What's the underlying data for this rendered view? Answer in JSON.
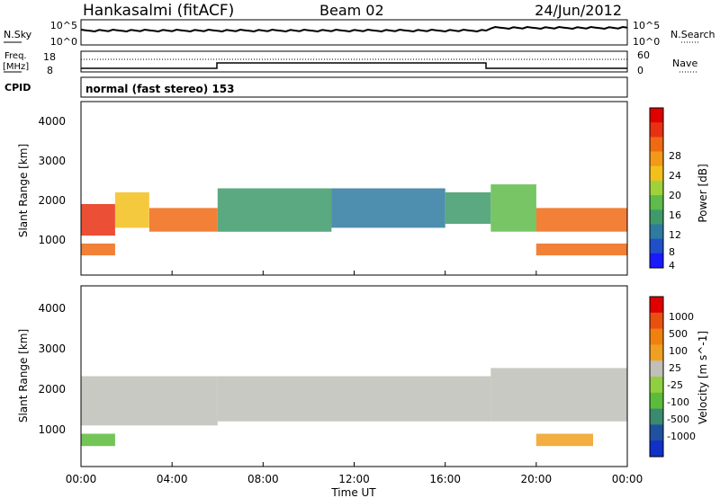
{
  "header": {
    "station": "Hankasalmi (fitACF)",
    "beam": "Beam 02",
    "date": "24/Jun/2012"
  },
  "top_panels": {
    "nsky_label": "N.Sky",
    "nsky_ticks": [
      "10^5",
      "10^0"
    ],
    "nsearch_label": "N.Search",
    "nsearch_ticks": [
      "10^5",
      "10^0"
    ],
    "freq_label_1": "Freq.",
    "freq_label_2": "[MHz]",
    "freq_ticks": [
      "18",
      "8"
    ],
    "nave_label": "Nave",
    "nave_ticks": [
      "60",
      "0"
    ],
    "cpid_label": "CPID",
    "cpid_text": "normal (fast stereo) 153"
  },
  "chart_data": [
    {
      "type": "heatmap",
      "name": "power",
      "ylabel": "Slant Range [km]",
      "yticks": [
        "4000",
        "3000",
        "2000",
        "1000"
      ],
      "ylim": [
        200,
        4600
      ],
      "xlim": [
        0,
        24
      ],
      "colorbar_label": "Power [dB]",
      "colorbar_ticks": [
        "28",
        "24",
        "20",
        "16",
        "12",
        "8",
        "4"
      ],
      "colors": [
        "#1a1aff",
        "#2050c8",
        "#2f7aa0",
        "#3e9a6a",
        "#5fbb4a",
        "#9fd23a",
        "#f2c01c",
        "#f29a18",
        "#f06a14",
        "#e83012",
        "#e00000"
      ],
      "bands": [
        {
          "t0": 0.0,
          "t1": 1.5,
          "r0": 1200,
          "r1": 2000,
          "level": 9
        },
        {
          "t0": 0.0,
          "t1": 1.5,
          "r0": 700,
          "r1": 1000,
          "level": 8
        },
        {
          "t0": 1.5,
          "t1": 3.0,
          "r0": 1400,
          "r1": 2300,
          "level": 6
        },
        {
          "t0": 3.0,
          "t1": 6.0,
          "r0": 1300,
          "r1": 1900,
          "level": 8
        },
        {
          "t0": 6.0,
          "t1": 11.0,
          "r0": 1300,
          "r1": 2400,
          "level": 3
        },
        {
          "t0": 11.0,
          "t1": 16.0,
          "r0": 1400,
          "r1": 2400,
          "level": 2
        },
        {
          "t0": 16.0,
          "t1": 18.0,
          "r0": 1500,
          "r1": 2300,
          "level": 3
        },
        {
          "t0": 18.0,
          "t1": 20.0,
          "r0": 1300,
          "r1": 2500,
          "level": 4
        },
        {
          "t0": 20.0,
          "t1": 24.0,
          "r0": 1300,
          "r1": 1900,
          "level": 8
        },
        {
          "t0": 20.0,
          "t1": 24.0,
          "r0": 700,
          "r1": 1000,
          "level": 8
        }
      ]
    },
    {
      "type": "heatmap",
      "name": "velocity",
      "ylabel": "Slant Range [km]",
      "yticks": [
        "4000",
        "3000",
        "2000",
        "1000"
      ],
      "ylim": [
        200,
        4600
      ],
      "xlim": [
        0,
        24
      ],
      "xticks": [
        "00:00",
        "04:00",
        "08:00",
        "12:00",
        "16:00",
        "20:00",
        "00:00"
      ],
      "xlabel": "Time UT",
      "colorbar_label": "Velocity [m s^-1]",
      "colorbar_ticks": [
        "1000",
        "500",
        "100",
        "25",
        "-25",
        "-100",
        "-500",
        "-1000"
      ],
      "colors": [
        "#1030c8",
        "#2050a0",
        "#3a8a70",
        "#5cbb3a",
        "#90d040",
        "#c0c0b8",
        "#f0a020",
        "#f08010",
        "#e85010",
        "#e00000"
      ],
      "bands": [
        {
          "t0": 0.0,
          "t1": 1.5,
          "r0": 700,
          "r1": 1000,
          "level": 3
        },
        {
          "t0": 0.0,
          "t1": 6.0,
          "r0": 1200,
          "r1": 2400,
          "level": 5
        },
        {
          "t0": 6.0,
          "t1": 18.0,
          "r0": 1300,
          "r1": 2400,
          "level": 5
        },
        {
          "t0": 18.0,
          "t1": 24.0,
          "r0": 1300,
          "r1": 2600,
          "level": 5
        },
        {
          "t0": 20.0,
          "t1": 22.5,
          "r0": 700,
          "r1": 1000,
          "level": 6
        }
      ]
    }
  ]
}
